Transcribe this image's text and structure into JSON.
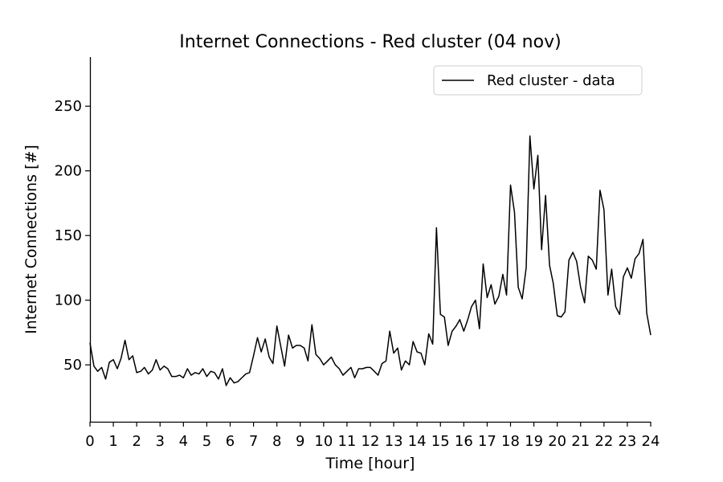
{
  "chart_data": {
    "type": "line",
    "title": "Internet Connections - Red cluster (04 nov)",
    "xlabel": "Time [hour]",
    "ylabel": "Internet Connections [#]",
    "xlim": [
      0,
      24
    ],
    "ylim": [
      6,
      288
    ],
    "xticks": [
      0,
      1,
      2,
      3,
      4,
      5,
      6,
      7,
      8,
      9,
      10,
      11,
      12,
      13,
      14,
      15,
      16,
      17,
      18,
      19,
      20,
      21,
      22,
      23,
      24
    ],
    "yticks": [
      50,
      100,
      150,
      200,
      250
    ],
    "grid": false,
    "legend_position": "top-right",
    "line_color": "#000000",
    "series": [
      {
        "name": "Red cluster - data",
        "x": [
          0.0,
          0.17,
          0.33,
          0.5,
          0.67,
          0.83,
          1.0,
          1.17,
          1.33,
          1.5,
          1.67,
          1.83,
          2.0,
          2.17,
          2.33,
          2.5,
          2.67,
          2.83,
          3.0,
          3.17,
          3.33,
          3.5,
          3.67,
          3.83,
          4.0,
          4.17,
          4.33,
          4.5,
          4.67,
          4.83,
          5.0,
          5.17,
          5.33,
          5.5,
          5.67,
          5.83,
          6.0,
          6.17,
          6.33,
          6.5,
          6.67,
          6.83,
          7.0,
          7.17,
          7.33,
          7.5,
          7.67,
          7.83,
          8.0,
          8.17,
          8.33,
          8.5,
          8.67,
          8.83,
          9.0,
          9.17,
          9.33,
          9.5,
          9.67,
          9.83,
          10.0,
          10.17,
          10.33,
          10.5,
          10.67,
          10.83,
          11.0,
          11.17,
          11.33,
          11.5,
          11.67,
          11.83,
          12.0,
          12.17,
          12.33,
          12.5,
          12.67,
          12.83,
          13.0,
          13.17,
          13.33,
          13.5,
          13.67,
          13.83,
          14.0,
          14.17,
          14.33,
          14.5,
          14.67,
          14.83,
          15.0,
          15.17,
          15.33,
          15.5,
          15.67,
          15.83,
          16.0,
          16.17,
          16.33,
          16.5,
          16.67,
          16.83,
          17.0,
          17.17,
          17.33,
          17.5,
          17.67,
          17.83,
          18.0,
          18.17,
          18.33,
          18.5,
          18.67,
          18.83,
          19.0,
          19.17,
          19.33,
          19.5,
          19.67,
          19.83,
          20.0,
          20.17,
          20.33,
          20.5,
          20.67,
          20.83,
          21.0,
          21.17,
          21.33,
          21.5,
          21.67,
          21.83,
          22.0,
          22.17,
          22.33,
          22.5,
          22.67,
          22.83,
          23.0,
          23.17,
          23.33,
          23.5,
          23.67,
          23.83,
          24.0
        ],
        "y": [
          67,
          49,
          45,
          48,
          39,
          52,
          54,
          47,
          55,
          69,
          54,
          57,
          44,
          45,
          48,
          43,
          46,
          54,
          46,
          49,
          47,
          41,
          41,
          42,
          40,
          47,
          42,
          44,
          43,
          47,
          41,
          45,
          44,
          39,
          47,
          34,
          40,
          36,
          37,
          40,
          43,
          44,
          57,
          71,
          60,
          70,
          56,
          51,
          80,
          64,
          49,
          73,
          63,
          65,
          65,
          63,
          53,
          81,
          58,
          55,
          50,
          53,
          56,
          50,
          47,
          42,
          45,
          48,
          40,
          47,
          47,
          48,
          48,
          45,
          42,
          51,
          53,
          76,
          59,
          63,
          46,
          53,
          50,
          68,
          60,
          59,
          50,
          74,
          66,
          156,
          89,
          87,
          65,
          76,
          80,
          85,
          76,
          85,
          95,
          100,
          78,
          128,
          102,
          112,
          97,
          103,
          120,
          104,
          189,
          168,
          110,
          101,
          125,
          227,
          186,
          212,
          139,
          181,
          127,
          113,
          88,
          87,
          91,
          131,
          137,
          130,
          110,
          98,
          134,
          131,
          124,
          185,
          170,
          104,
          124,
          95,
          89,
          118,
          125,
          117,
          132,
          136,
          147,
          90,
          73
        ]
      }
    ]
  }
}
